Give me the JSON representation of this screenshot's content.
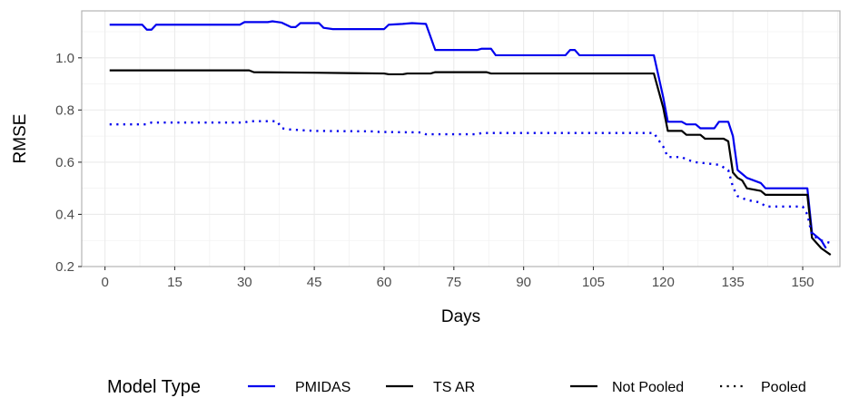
{
  "chart_data": {
    "type": "line",
    "xlabel": "Days",
    "ylabel": "RMSE",
    "xlim": [
      -5,
      158
    ],
    "ylim": [
      0.2,
      1.18
    ],
    "x_ticks": [
      0,
      15,
      30,
      45,
      60,
      75,
      90,
      105,
      120,
      135,
      150
    ],
    "y_ticks": [
      0.2,
      0.4,
      0.6,
      0.8,
      1.0
    ],
    "x_tick_labels": [
      "0",
      "15",
      "30",
      "45",
      "60",
      "75",
      "90",
      "105",
      "120",
      "135",
      "150"
    ],
    "y_tick_labels": [
      "0.2",
      "0.4",
      "0.6",
      "0.8",
      "1.0"
    ],
    "grid": true,
    "legend": {
      "position": "bottom",
      "color_title": "Model Type",
      "color_entries": [
        {
          "label": "PMIDAS",
          "color": "#0000ee"
        },
        {
          "label": "TS AR",
          "color": "#000000"
        }
      ],
      "linetype_entries": [
        {
          "label": "Not Pooled",
          "linetype": "solid"
        },
        {
          "label": "Pooled",
          "linetype": "dotted"
        }
      ]
    },
    "series": [
      {
        "name": "PMIDAS",
        "pooled": "Not Pooled",
        "color": "#0000ee",
        "linetype": "solid",
        "points": [
          [
            1,
            1.127
          ],
          [
            8,
            1.127
          ],
          [
            9,
            1.108
          ],
          [
            10,
            1.108
          ],
          [
            11,
            1.127
          ],
          [
            29,
            1.127
          ],
          [
            30,
            1.137
          ],
          [
            35,
            1.137
          ],
          [
            36,
            1.14
          ],
          [
            38,
            1.135
          ],
          [
            40,
            1.118
          ],
          [
            41,
            1.118
          ],
          [
            42,
            1.133
          ],
          [
            46,
            1.133
          ],
          [
            47,
            1.115
          ],
          [
            49,
            1.11
          ],
          [
            60,
            1.11
          ],
          [
            61,
            1.127
          ],
          [
            64,
            1.13
          ],
          [
            66,
            1.133
          ],
          [
            69,
            1.13
          ],
          [
            71,
            1.03
          ],
          [
            80,
            1.03
          ],
          [
            81,
            1.035
          ],
          [
            83,
            1.035
          ],
          [
            84,
            1.01
          ],
          [
            99,
            1.01
          ],
          [
            100,
            1.03
          ],
          [
            101,
            1.03
          ],
          [
            102,
            1.01
          ],
          [
            118,
            1.01
          ],
          [
            120,
            0.85
          ],
          [
            121,
            0.755
          ],
          [
            124,
            0.755
          ],
          [
            125,
            0.745
          ],
          [
            127,
            0.745
          ],
          [
            128,
            0.73
          ],
          [
            131,
            0.73
          ],
          [
            132,
            0.755
          ],
          [
            134,
            0.755
          ],
          [
            135,
            0.7
          ],
          [
            136,
            0.57
          ],
          [
            137,
            0.555
          ],
          [
            138,
            0.54
          ],
          [
            141,
            0.52
          ],
          [
            142,
            0.5
          ],
          [
            151,
            0.5
          ],
          [
            152,
            0.33
          ],
          [
            154,
            0.3
          ],
          [
            155,
            0.27
          ]
        ]
      },
      {
        "name": "TS AR",
        "pooled": "Not Pooled",
        "color": "#000000",
        "linetype": "solid",
        "points": [
          [
            1,
            0.952
          ],
          [
            31,
            0.952
          ],
          [
            32,
            0.945
          ],
          [
            45,
            0.943
          ],
          [
            60,
            0.94
          ],
          [
            61,
            0.937
          ],
          [
            64,
            0.937
          ],
          [
            65,
            0.94
          ],
          [
            70,
            0.94
          ],
          [
            71,
            0.945
          ],
          [
            82,
            0.945
          ],
          [
            83,
            0.94
          ],
          [
            118,
            0.94
          ],
          [
            120,
            0.81
          ],
          [
            121,
            0.72
          ],
          [
            124,
            0.72
          ],
          [
            125,
            0.705
          ],
          [
            128,
            0.705
          ],
          [
            129,
            0.69
          ],
          [
            133,
            0.69
          ],
          [
            134,
            0.68
          ],
          [
            135,
            0.56
          ],
          [
            136,
            0.54
          ],
          [
            137,
            0.53
          ],
          [
            138,
            0.5
          ],
          [
            141,
            0.49
          ],
          [
            142,
            0.475
          ],
          [
            151,
            0.475
          ],
          [
            152,
            0.31
          ],
          [
            153,
            0.29
          ],
          [
            154,
            0.27
          ],
          [
            156,
            0.245
          ]
        ]
      },
      {
        "name": "PMIDAS",
        "pooled": "Pooled",
        "color": "#0000ee",
        "linetype": "dotted",
        "points": [
          [
            1,
            0.745
          ],
          [
            9,
            0.745
          ],
          [
            10,
            0.752
          ],
          [
            30,
            0.752
          ],
          [
            31,
            0.757
          ],
          [
            37,
            0.757
          ],
          [
            38,
            0.73
          ],
          [
            40,
            0.725
          ],
          [
            45,
            0.72
          ],
          [
            58,
            0.718
          ],
          [
            59,
            0.716
          ],
          [
            68,
            0.714
          ],
          [
            69,
            0.707
          ],
          [
            80,
            0.707
          ],
          [
            81,
            0.712
          ],
          [
            118,
            0.712
          ],
          [
            119,
            0.685
          ],
          [
            120,
            0.66
          ],
          [
            121,
            0.62
          ],
          [
            124,
            0.62
          ],
          [
            125,
            0.61
          ],
          [
            127,
            0.6
          ],
          [
            132,
            0.59
          ],
          [
            134,
            0.57
          ],
          [
            135,
            0.505
          ],
          [
            136,
            0.47
          ],
          [
            138,
            0.455
          ],
          [
            141,
            0.445
          ],
          [
            142,
            0.43
          ],
          [
            150,
            0.43
          ],
          [
            151,
            0.4
          ],
          [
            152,
            0.32
          ],
          [
            154,
            0.3
          ],
          [
            156,
            0.29
          ]
        ]
      }
    ]
  }
}
